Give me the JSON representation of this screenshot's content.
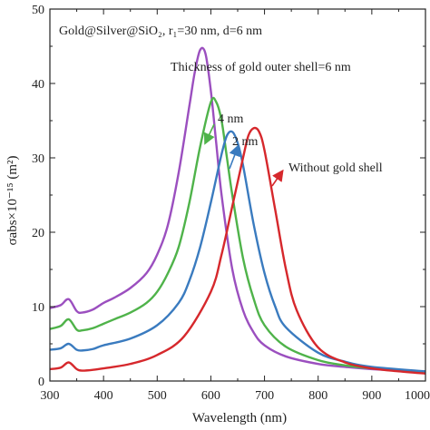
{
  "chart_data": {
    "type": "line",
    "title": "Gold@Silver@SiO₂, r₁=30 nm, d=6 nm",
    "xlabel": "Wavelength (nm)",
    "ylabel": "σabs×10⁻¹⁵ (m²)",
    "xlim": [
      300,
      1000
    ],
    "ylim": [
      0,
      50
    ],
    "xticks": [
      300,
      400,
      500,
      600,
      700,
      800,
      900,
      1000
    ],
    "yticks": [
      0,
      10,
      20,
      30,
      40,
      50
    ],
    "grid": false,
    "legend": "none",
    "series": [
      {
        "label": "Thickness of gold outer shell=6 nm",
        "color": "#9b4fbf",
        "x": [
          300,
          320,
          335,
          350,
          360,
          380,
          400,
          420,
          450,
          480,
          500,
          520,
          540,
          560,
          570,
          580,
          590,
          600,
          610,
          620,
          640,
          660,
          680,
          700,
          740,
          800,
          850,
          900,
          1000
        ],
        "y": [
          9.8,
          10.2,
          11.0,
          9.4,
          9.2,
          9.6,
          10.5,
          11.2,
          12.5,
          14.5,
          17.0,
          21.0,
          28.0,
          37.0,
          41.5,
          44.5,
          44.0,
          39.0,
          32.0,
          25.0,
          15.0,
          9.5,
          6.5,
          4.8,
          3.3,
          2.3,
          1.9,
          1.6,
          1.2
        ]
      },
      {
        "label": "4 nm",
        "color": "#4fb34a",
        "x": [
          300,
          320,
          335,
          350,
          360,
          380,
          400,
          420,
          450,
          480,
          500,
          520,
          540,
          560,
          580,
          600,
          610,
          620,
          630,
          640,
          660,
          680,
          700,
          740,
          800,
          850,
          900,
          1000
        ],
        "y": [
          7.0,
          7.4,
          8.3,
          6.9,
          6.8,
          7.1,
          7.7,
          8.3,
          9.2,
          10.5,
          12.0,
          14.5,
          18.0,
          24.0,
          31.5,
          37.5,
          37.5,
          35.0,
          30.0,
          25.0,
          16.5,
          11.0,
          7.5,
          4.6,
          2.8,
          2.1,
          1.7,
          1.2
        ]
      },
      {
        "label": "2 nm",
        "color": "#3a7bbf",
        "x": [
          300,
          320,
          335,
          350,
          360,
          380,
          400,
          450,
          500,
          540,
          560,
          580,
          600,
          620,
          630,
          640,
          650,
          660,
          680,
          700,
          720,
          740,
          800,
          850,
          900,
          1000
        ],
        "y": [
          4.2,
          4.4,
          5.0,
          4.2,
          4.1,
          4.3,
          4.8,
          5.7,
          7.5,
          10.5,
          13.5,
          18.0,
          24.0,
          30.5,
          33.0,
          33.5,
          32.0,
          29.0,
          21.0,
          14.5,
          10.0,
          7.2,
          3.8,
          2.6,
          1.9,
          1.3
        ]
      },
      {
        "label": "Without gold shell",
        "color": "#d6282c",
        "x": [
          300,
          320,
          335,
          350,
          360,
          380,
          400,
          450,
          500,
          550,
          600,
          620,
          640,
          660,
          670,
          680,
          690,
          700,
          720,
          740,
          760,
          800,
          850,
          900,
          950,
          1000
        ],
        "y": [
          1.6,
          1.8,
          2.5,
          1.6,
          1.4,
          1.5,
          1.7,
          2.3,
          3.5,
          6.0,
          12.0,
          17.0,
          23.5,
          30.0,
          33.0,
          34.0,
          33.5,
          31.0,
          23.0,
          15.0,
          9.5,
          4.5,
          2.5,
          1.7,
          1.3,
          1.0
        ]
      }
    ],
    "annotations": [
      {
        "text": "Thickness of gold outer shell=6 nm"
      },
      {
        "text": "4 nm"
      },
      {
        "text": "2 nm"
      },
      {
        "text": "Without gold shell"
      }
    ]
  }
}
